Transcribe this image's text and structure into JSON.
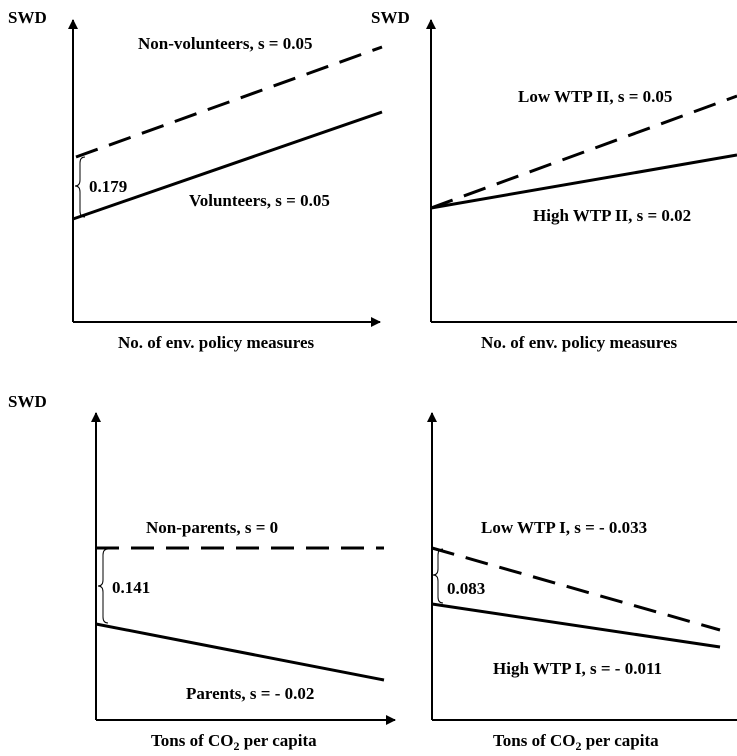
{
  "panels": [
    {
      "id": "top-left",
      "y_label": "SWD",
      "x_label": "No. of env. policy measures",
      "line_dashed": "Non-volunteers, s = 0.05",
      "line_solid": "Volunteers, s = 0.05",
      "gap_label": "0.179"
    },
    {
      "id": "top-right",
      "y_label": "SWD",
      "x_label": "No. of env. policy measures",
      "line_dashed": "Low WTP II, s = 0.05",
      "line_solid": "High WTP II, s = 0.02"
    },
    {
      "id": "bottom-left",
      "y_label": "SWD",
      "x_label_prefix": "Tons of CO",
      "x_label_sub": "2",
      "x_label_suffix": " per capita",
      "line_dashed": "Non-parents, s = 0",
      "line_solid": "Parents, s = - 0.02",
      "gap_label": "0.141"
    },
    {
      "id": "bottom-right",
      "x_label_prefix": "Tons of CO",
      "x_label_sub": "2",
      "x_label_suffix": " per capita",
      "line_dashed": "Low WTP I, s = - 0.033",
      "line_solid": "High WTP I, s = - 0.011",
      "gap_label": "0.083"
    }
  ]
}
